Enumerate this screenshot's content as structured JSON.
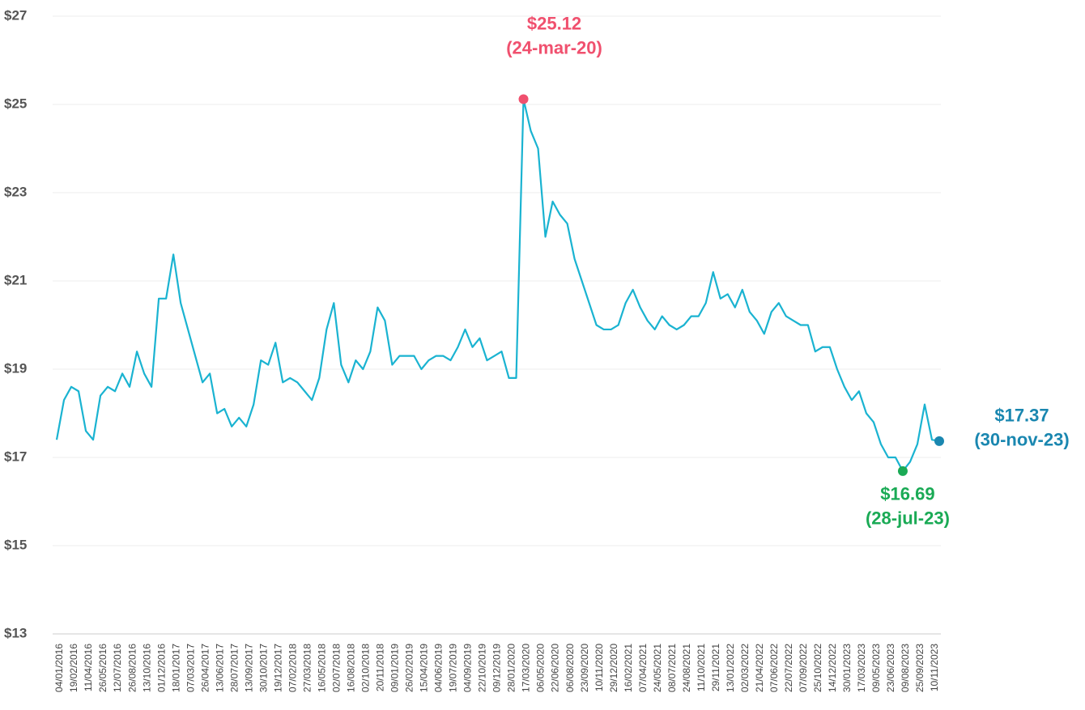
{
  "chart_data": {
    "type": "line",
    "categories": [
      "04/01/2016",
      null,
      "19/02/2016",
      null,
      "11/04/2016",
      null,
      "26/05/2016",
      null,
      "12/07/2016",
      null,
      "26/08/2016",
      null,
      "13/10/2016",
      null,
      "01/12/2016",
      null,
      "18/01/2017",
      null,
      "07/03/2017",
      null,
      "26/04/2017",
      null,
      "13/06/2017",
      null,
      "28/07/2017",
      null,
      "13/09/2017",
      null,
      "30/10/2017",
      null,
      "19/12/2017",
      null,
      "07/02/2018",
      null,
      "27/03/2018",
      null,
      "16/05/2018",
      null,
      "02/07/2018",
      null,
      "16/08/2018",
      null,
      "02/10/2018",
      null,
      "20/11/2018",
      null,
      "09/01/2019",
      null,
      "26/02/2019",
      null,
      "15/04/2019",
      null,
      "04/06/2019",
      null,
      "19/07/2019",
      null,
      "04/09/2019",
      null,
      "22/10/2019",
      null,
      "09/12/2019",
      null,
      "28/01/2020",
      null,
      "17/03/2020",
      null,
      "06/05/2020",
      null,
      "22/06/2020",
      null,
      "06/08/2020",
      null,
      "23/09/2020",
      null,
      "10/11/2020",
      null,
      "29/12/2020",
      null,
      "16/02/2021",
      null,
      "07/04/2021",
      null,
      "24/05/2021",
      null,
      "08/07/2021",
      null,
      "24/08/2021",
      null,
      "11/10/2021",
      null,
      "29/11/2021",
      null,
      "13/01/2022",
      null,
      "02/03/2022",
      null,
      "21/04/2022",
      null,
      "07/06/2022",
      null,
      "22/07/2022",
      null,
      "07/09/2022",
      null,
      "25/10/2022",
      null,
      "14/12/2022",
      null,
      "30/01/2023",
      null,
      "17/03/2023",
      null,
      "09/05/2023",
      null,
      "23/06/2023",
      null,
      "09/08/2023",
      null,
      "25/09/2023",
      null,
      "10/11/2023",
      null
    ],
    "series": [
      {
        "color": "#1ab3d1",
        "values": [
          17.4,
          18.3,
          18.6,
          18.5,
          17.6,
          17.4,
          18.4,
          18.6,
          18.5,
          18.9,
          18.6,
          19.4,
          18.9,
          18.6,
          20.6,
          20.6,
          21.6,
          20.5,
          19.9,
          19.3,
          18.7,
          18.9,
          18.0,
          18.1,
          17.7,
          17.9,
          17.7,
          18.2,
          19.2,
          19.1,
          19.6,
          18.7,
          18.8,
          18.7,
          18.5,
          18.3,
          18.8,
          19.9,
          20.5,
          19.1,
          18.7,
          19.2,
          19.0,
          19.4,
          20.4,
          20.1,
          19.1,
          19.3,
          19.3,
          19.3,
          19.0,
          19.2,
          19.3,
          19.3,
          19.2,
          19.5,
          19.9,
          19.5,
          19.7,
          19.2,
          19.3,
          19.4,
          18.8,
          18.8,
          25.12,
          24.4,
          24.0,
          22.0,
          22.8,
          22.5,
          22.3,
          21.5,
          21.0,
          20.5,
          20.0,
          19.9,
          19.9,
          20.0,
          20.5,
          20.8,
          20.4,
          20.1,
          19.9,
          20.2,
          20.0,
          19.9,
          20.0,
          20.2,
          20.2,
          20.5,
          21.2,
          20.6,
          20.7,
          20.4,
          20.8,
          20.3,
          20.1,
          19.8,
          20.3,
          20.5,
          20.2,
          20.1,
          20.0,
          20.0,
          19.4,
          19.5,
          19.5,
          19.0,
          18.6,
          18.3,
          18.5,
          18.0,
          17.8,
          17.3,
          17.0,
          17.0,
          16.69,
          16.9,
          17.3,
          18.2,
          17.4,
          17.37
        ],
        "value_labels": [
          null,
          null,
          null,
          null,
          null,
          null,
          null,
          null,
          null,
          null,
          null,
          null,
          null,
          null,
          null,
          null,
          null,
          null,
          null,
          null,
          null,
          null,
          null,
          null,
          null,
          null,
          null,
          null,
          null,
          null,
          null,
          null,
          null,
          null,
          null,
          null,
          null,
          null,
          null,
          null,
          null,
          null,
          null,
          null,
          null,
          null,
          null,
          null,
          null,
          null,
          null,
          null,
          null,
          null,
          null,
          null,
          null,
          null,
          null,
          null,
          null,
          null,
          null,
          null,
          "$25.12",
          null,
          null,
          null,
          null,
          null,
          null,
          null,
          null,
          null,
          null,
          null,
          null,
          null,
          null,
          null,
          null,
          null,
          null,
          null,
          null,
          null,
          null,
          null,
          null,
          null,
          null,
          null,
          null,
          null,
          null,
          null,
          null,
          null,
          null,
          null,
          null,
          null,
          null,
          null,
          null,
          null,
          null,
          null,
          null,
          null,
          null,
          null,
          null,
          null,
          null,
          null,
          "$16.69",
          null,
          null,
          null,
          null,
          "$17.37"
        ]
      }
    ],
    "annotations": [
      {
        "text": "(24-mar-20)",
        "color": "#f0506e"
      },
      {
        "text": "(28-jul-23)",
        "color": "#1aaa55"
      },
      {
        "text": "(30-nov-23)",
        "color": "#1a87b0"
      }
    ],
    "ylim": [
      13,
      27
    ],
    "yticks": [
      {
        "value": 13,
        "label": "$13"
      },
      {
        "value": 15,
        "label": "$15"
      },
      {
        "value": 17,
        "label": "$17"
      },
      {
        "value": 19,
        "label": "$19"
      },
      {
        "value": 21,
        "label": "$21"
      },
      {
        "value": 23,
        "label": "$23"
      },
      {
        "value": 25,
        "label": "$25"
      },
      {
        "value": 27,
        "label": "$27"
      }
    ],
    "grid": true
  }
}
